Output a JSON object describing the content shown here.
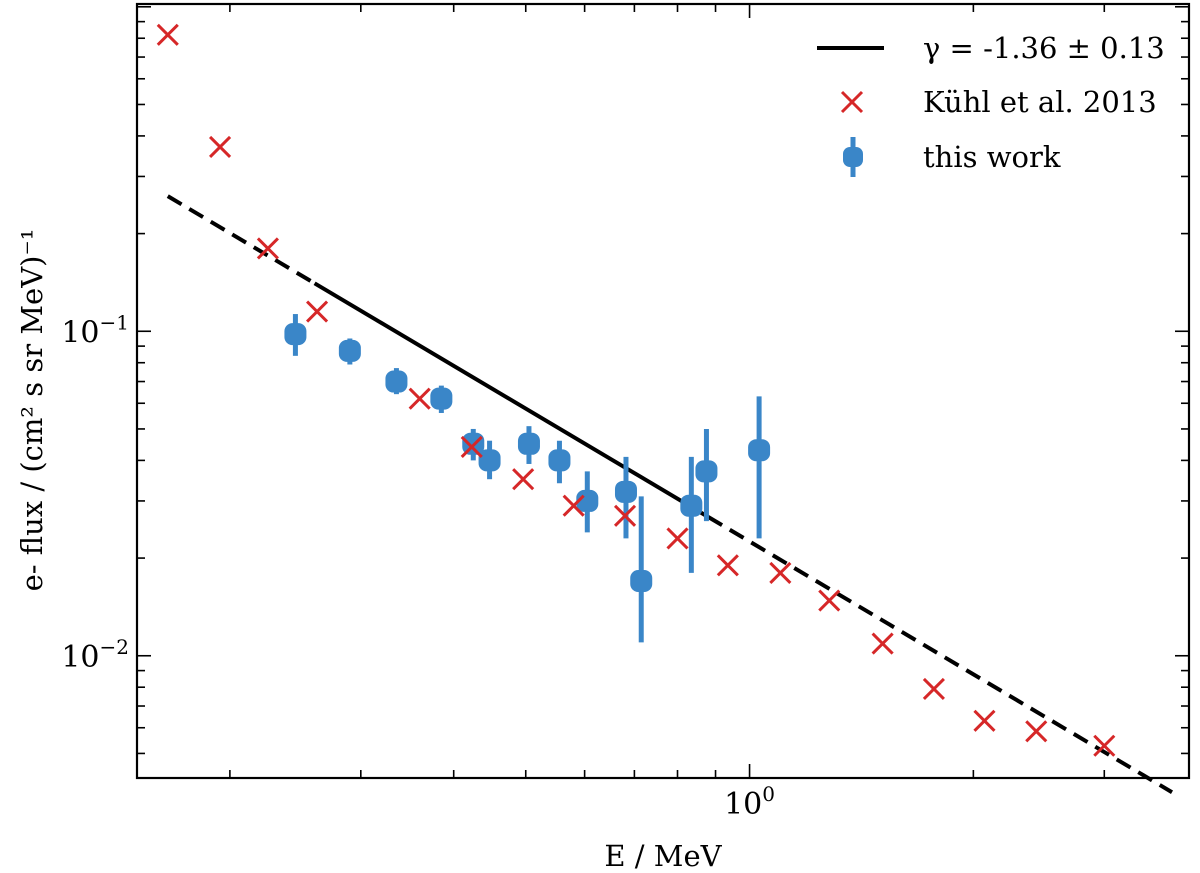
{
  "chart_data": {
    "type": "scatter",
    "xscale": "log",
    "yscale": "log",
    "xlim": [
      0.15,
      3.9
    ],
    "ylim": [
      0.0042,
      1.02
    ],
    "xlabel": "E / MeV",
    "ylabel": "e- flux / (cm² s sr MeV)⁻¹",
    "x_tick_labels": [
      {
        "value": 1,
        "base": "10",
        "exp": "0"
      }
    ],
    "y_tick_labels": [
      {
        "value": 0.1,
        "base": "10",
        "exp": "−1"
      },
      {
        "value": 0.01,
        "base": "10",
        "exp": "−2"
      }
    ],
    "legend_position": "top-right",
    "fit": {
      "label": "γ = -1.36 ± 0.13",
      "slope": -1.36,
      "amplitude": 0.0225,
      "solid_range": [
        0.26,
        0.88
      ],
      "dashed_ranges": [
        [
          0.165,
          0.26
        ],
        [
          0.88,
          3.7
        ]
      ],
      "color": "#000000"
    },
    "series": [
      {
        "name": "Kühl et al. 2013",
        "marker": "x",
        "color": "#d62728",
        "x": [
          0.165,
          0.194,
          0.225,
          0.262,
          0.36,
          0.423,
          0.496,
          0.58,
          0.68,
          0.8,
          0.935,
          1.1,
          1.28,
          1.51,
          1.77,
          2.07,
          2.43,
          3.0
        ],
        "y": [
          0.82,
          0.37,
          0.18,
          0.115,
          0.062,
          0.044,
          0.035,
          0.029,
          0.027,
          0.023,
          0.019,
          0.018,
          0.0148,
          0.0109,
          0.0079,
          0.0063,
          0.00585,
          0.00528
        ]
      },
      {
        "name": "this work",
        "marker": "o",
        "color": "#3a86c8",
        "x": [
          0.245,
          0.29,
          0.335,
          0.385,
          0.425,
          0.447,
          0.505,
          0.555,
          0.605,
          0.682,
          0.715,
          0.835,
          0.875,
          1.03
        ],
        "y": [
          0.098,
          0.087,
          0.07,
          0.062,
          0.045,
          0.04,
          0.045,
          0.04,
          0.03,
          0.032,
          0.017,
          0.029,
          0.037,
          0.043
        ],
        "err_low": [
          0.084,
          0.079,
          0.064,
          0.056,
          0.04,
          0.035,
          0.039,
          0.034,
          0.024,
          0.023,
          0.011,
          0.018,
          0.026,
          0.023
        ],
        "err_high": [
          0.113,
          0.095,
          0.077,
          0.068,
          0.05,
          0.046,
          0.051,
          0.046,
          0.037,
          0.041,
          0.031,
          0.041,
          0.05,
          0.063
        ]
      }
    ]
  }
}
